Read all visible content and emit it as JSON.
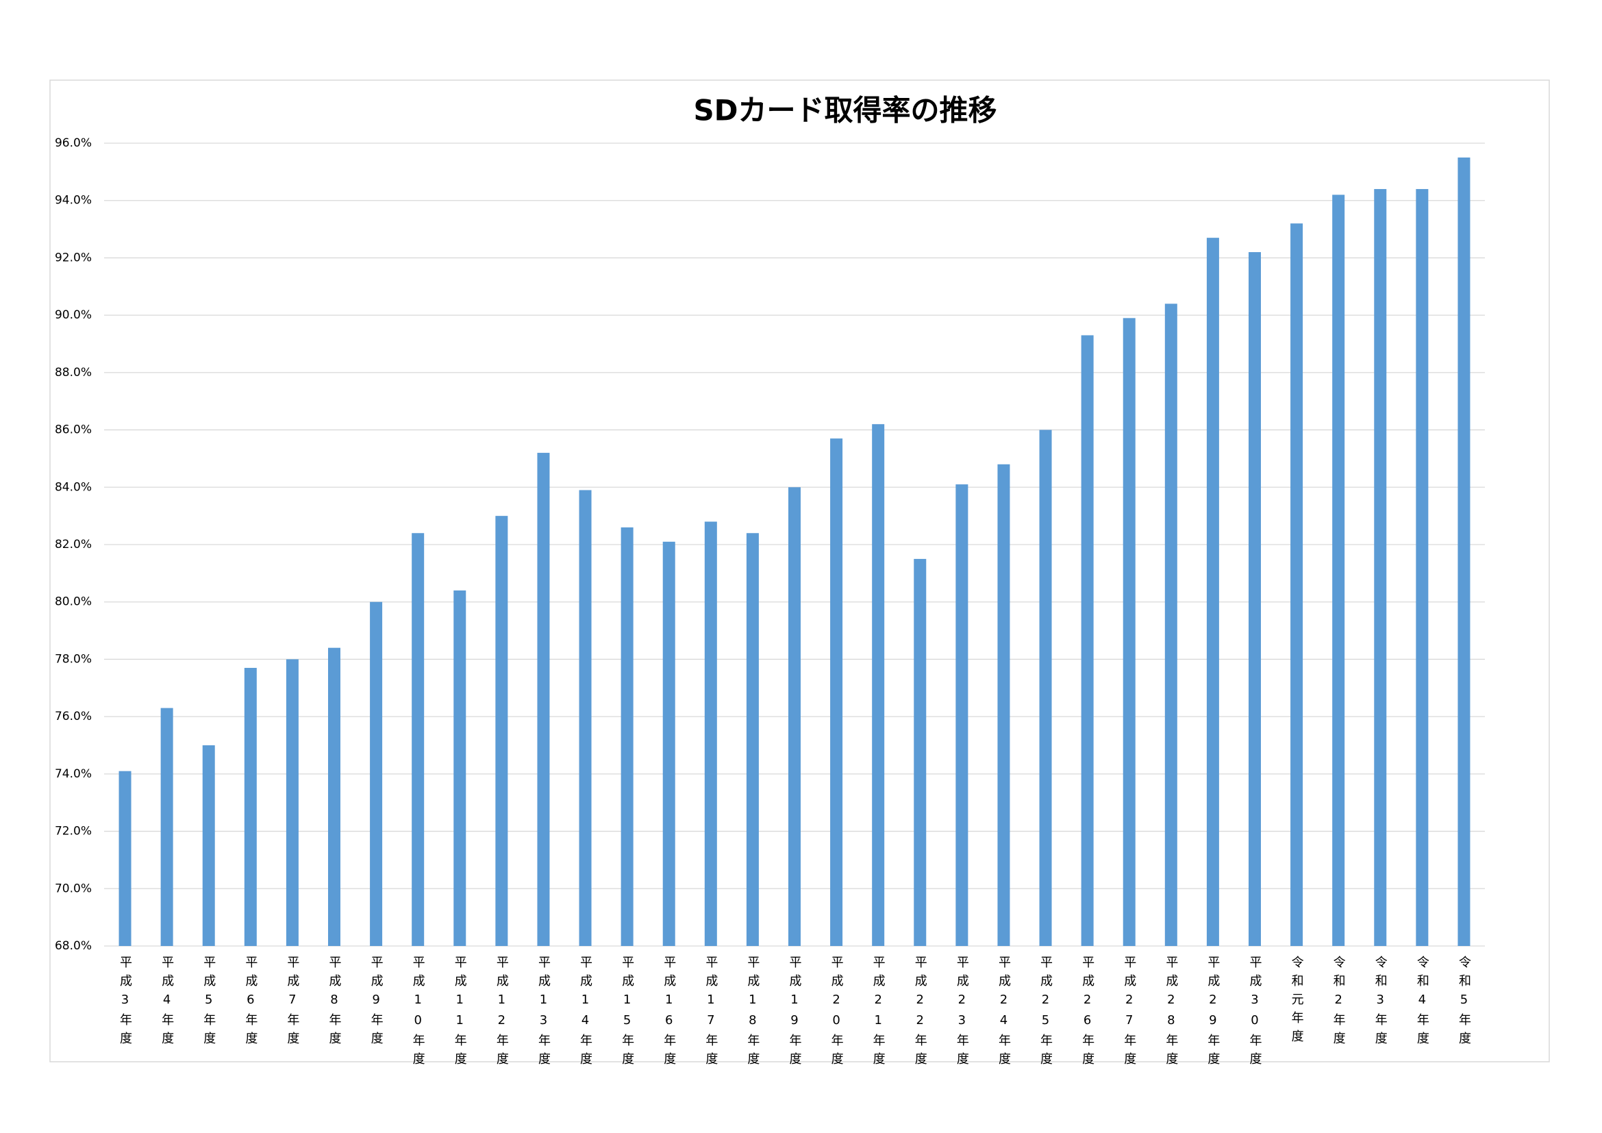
{
  "chart_data": {
    "type": "bar",
    "title": "SDカード取得率の推移",
    "categories": [
      "平成3年度",
      "平成4年度",
      "平成5年度",
      "平成6年度",
      "平成7年度",
      "平成8年度",
      "平成9年度",
      "平成10年度",
      "平成11年度",
      "平成12年度",
      "平成13年度",
      "平成14年度",
      "平成15年度",
      "平成16年度",
      "平成17年度",
      "平成18年度",
      "平成19年度",
      "平成20年度",
      "平成21年度",
      "平成22年度",
      "平成23年度",
      "平成24年度",
      "平成25年度",
      "平成26年度",
      "平成27年度",
      "平成28年度",
      "平成29年度",
      "平成30年度",
      "令和元年度",
      "令和2年度",
      "令和3年度",
      "令和4年度",
      "令和5年度"
    ],
    "values": [
      74.1,
      76.3,
      75.0,
      77.7,
      78.0,
      78.4,
      80.0,
      82.4,
      80.4,
      83.0,
      85.2,
      83.9,
      82.6,
      82.1,
      82.8,
      82.4,
      84.0,
      85.7,
      86.2,
      81.5,
      84.1,
      84.8,
      86.0,
      89.3,
      89.9,
      90.4,
      92.7,
      92.2,
      93.2,
      94.2,
      94.4,
      94.4,
      95.5
    ],
    "color": "#5b9bd5",
    "ylim": [
      68,
      96
    ],
    "yticks": [
      {
        "value": 68,
        "label": "68.0%"
      },
      {
        "value": 70,
        "label": "70.0%"
      },
      {
        "value": 72,
        "label": "72.0%"
      },
      {
        "value": 74,
        "label": "74.0%"
      },
      {
        "value": 76,
        "label": "76.0%"
      },
      {
        "value": 78,
        "label": "78.0%"
      },
      {
        "value": 80,
        "label": "80.0%"
      },
      {
        "value": 82,
        "label": "82.0%"
      },
      {
        "value": 84,
        "label": "84.0%"
      },
      {
        "value": 86,
        "label": "86.0%"
      },
      {
        "value": 88,
        "label": "88.0%"
      },
      {
        "value": 90,
        "label": "90.0%"
      },
      {
        "value": 92,
        "label": "92.0%"
      },
      {
        "value": 94,
        "label": "94.0%"
      },
      {
        "value": 96,
        "label": "96.0%"
      }
    ],
    "grid": true
  }
}
